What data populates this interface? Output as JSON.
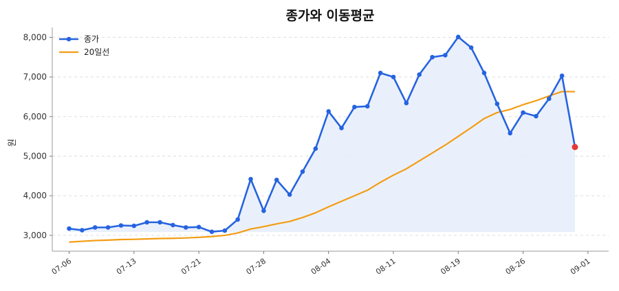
{
  "chart_data": {
    "type": "line",
    "title": "종가와 이동평균",
    "xlabel": "",
    "ylabel": "원",
    "ylim": [
      2600,
      8250
    ],
    "yticks": [
      3000,
      4000,
      5000,
      6000,
      7000,
      8000
    ],
    "ytick_labels": [
      "3,000",
      "4,000",
      "5,000",
      "6,000",
      "7,000",
      "8,000"
    ],
    "xlim": [
      -1.3,
      41.6
    ],
    "xtick_positions": [
      0,
      5,
      10,
      15,
      20,
      25,
      30,
      35,
      40
    ],
    "xtick_labels": [
      "07-06",
      "07-13",
      "07-21",
      "07-28",
      "08-04",
      "08-11",
      "08-19",
      "08-26",
      "09-01"
    ],
    "grid": "horizontal-dashed",
    "legend_position": "top-left",
    "colors": {
      "close": "#2563e0",
      "ma": "#f39c12",
      "fill": "#e8eefb",
      "last_point": "#e53935"
    },
    "series": [
      {
        "name": "종가",
        "style": "line-with-markers",
        "values": [
          3170,
          3130,
          3200,
          3200,
          3250,
          3240,
          3330,
          3330,
          3260,
          3200,
          3210,
          3090,
          3120,
          3400,
          4420,
          3620,
          4400,
          4030,
          4610,
          5190,
          6130,
          5710,
          6240,
          6260,
          7100,
          7000,
          6340,
          7060,
          7500,
          7550,
          8010,
          7740,
          7100,
          6320,
          5580,
          6100,
          6010,
          6450,
          7030,
          5230
        ]
      },
      {
        "name": "20일선",
        "style": "line",
        "values": [
          2830,
          2850,
          2870,
          2880,
          2895,
          2900,
          2910,
          2920,
          2925,
          2935,
          2950,
          2970,
          3000,
          3060,
          3160,
          3220,
          3290,
          3350,
          3450,
          3570,
          3720,
          3860,
          4000,
          4140,
          4340,
          4520,
          4680,
          4880,
          5080,
          5280,
          5500,
          5720,
          5950,
          6100,
          6180,
          6300,
          6400,
          6520,
          6630,
          6630
        ]
      }
    ]
  }
}
